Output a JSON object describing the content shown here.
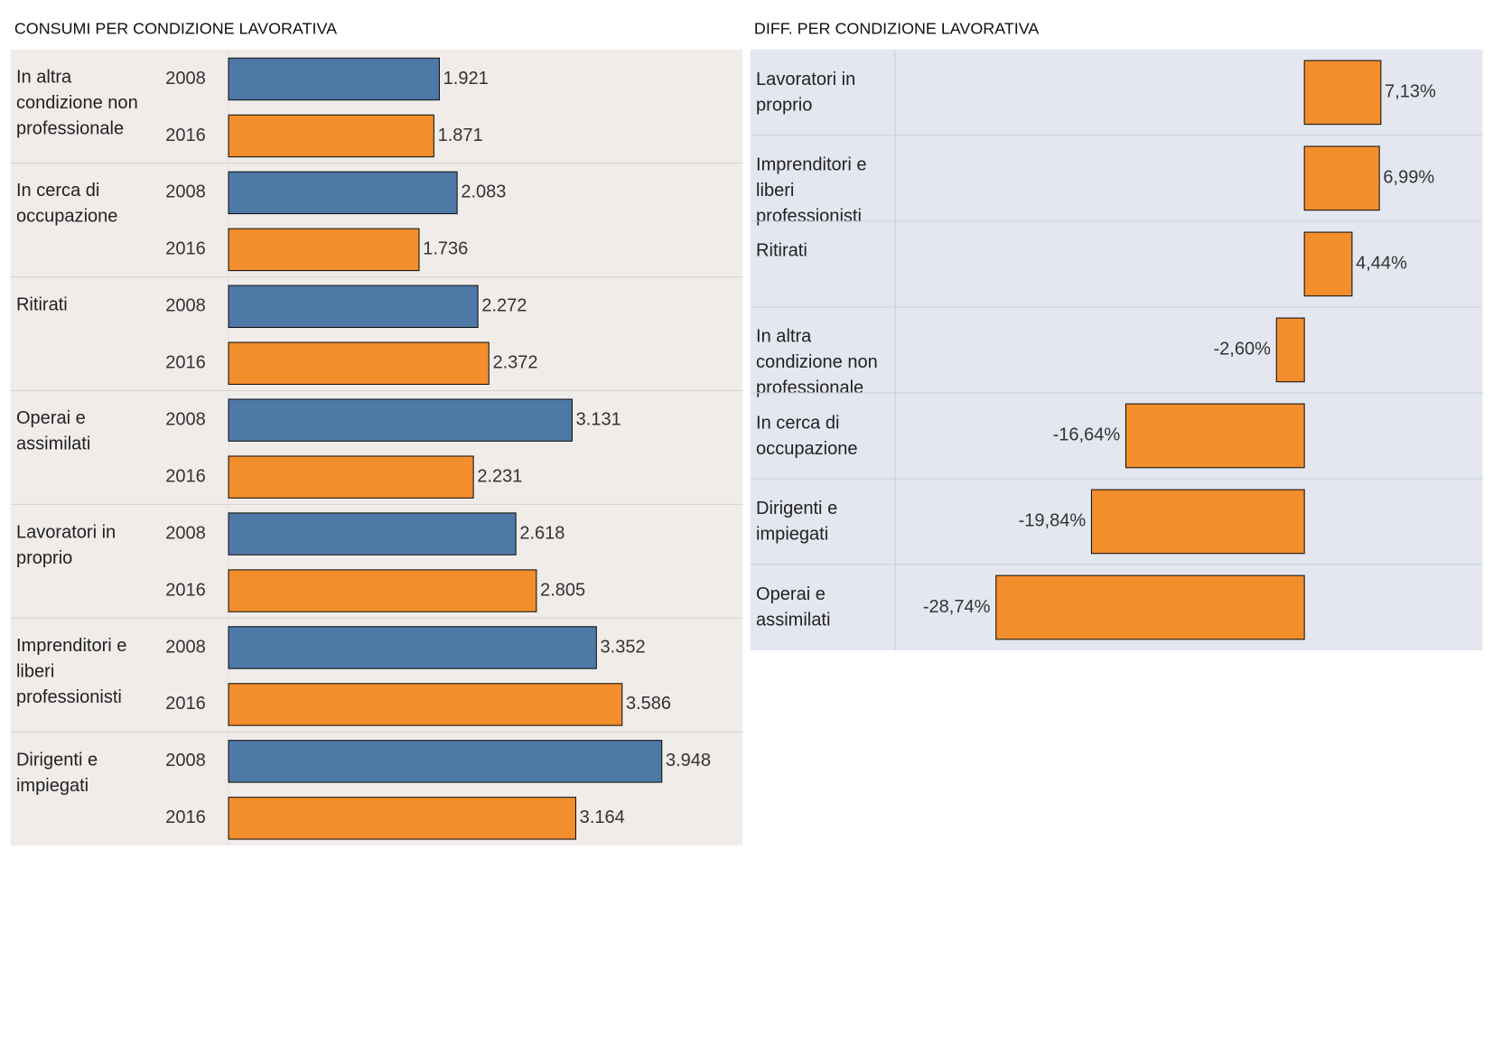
{
  "chart_data": [
    {
      "type": "grouped-hbar",
      "title": "CONSUMI PER CONDIZIONE LAVORATIVA",
      "categories": [
        "In altra condizione non professionale",
        "In cerca di occupazione",
        "Ritirati",
        "Operai e assimilati",
        "Lavoratori in proprio",
        "Imprenditori e liberi professionisti",
        "Dirigenti e impiegati"
      ],
      "series": [
        {
          "name": "2008",
          "color": "#4e79a7",
          "values": [
            1921,
            2083,
            2272,
            3131,
            2618,
            3352,
            3948
          ],
          "value_labels": [
            "1.921",
            "2.083",
            "2.272",
            "3.131",
            "2.618",
            "3.352",
            "3.948"
          ]
        },
        {
          "name": "2016",
          "color": "#f28e2b",
          "values": [
            1871,
            1736,
            2372,
            2231,
            2805,
            3586,
            3164
          ],
          "value_labels": [
            "1.871",
            "1.736",
            "2.372",
            "2.231",
            "2.805",
            "3.586",
            "3.164"
          ]
        }
      ],
      "xlim": [
        0,
        4685
      ]
    },
    {
      "type": "diverging-hbar",
      "title": "DIFF. PER CONDIZIONE LAVORATIVA",
      "categories": [
        "Lavoratori in proprio",
        "Imprenditori e liberi professionisti",
        "Ritirati",
        "In altra condizione non professionale",
        "In cerca di occupazione",
        "Dirigenti e impiegati",
        "Operai e assimilati"
      ],
      "values": [
        7.13,
        6.99,
        4.44,
        -2.6,
        -16.64,
        -19.84,
        -28.74
      ],
      "value_labels": [
        "7,13%",
        "6,99%",
        "4,44%",
        "-2,60%",
        "-16,64%",
        "-19,84%",
        "-28,74%"
      ],
      "color": "#f28e2b",
      "xlim": [
        -38.15,
        16.6
      ]
    }
  ]
}
